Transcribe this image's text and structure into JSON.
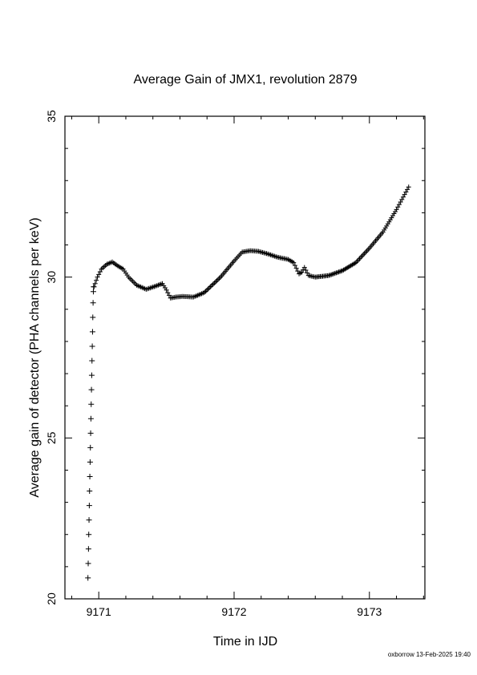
{
  "chart_data": {
    "type": "scatter",
    "marker": "plus",
    "title": "Average Gain of JMX1, revolution 2879",
    "xlabel": "Time in IJD",
    "ylabel": "Average gain of detector (PHA channels per keV)",
    "xlim": [
      9170.75,
      9173.41
    ],
    "ylim": [
      20,
      35
    ],
    "xticks": [
      9171,
      9172,
      9173
    ],
    "yticks": [
      20,
      25,
      30,
      35
    ],
    "grid": false,
    "footer": "oxborrow 13-Feb-2025 19:40",
    "series": [
      {
        "sparse_x": [
          9170.92,
          9170.922,
          9170.924,
          9170.926,
          9170.928,
          9170.93,
          9170.932,
          9170.934,
          9170.936,
          9170.938,
          9170.94,
          9170.942,
          9170.944,
          9170.946,
          9170.948,
          9170.95,
          9170.952,
          9170.954,
          9170.956,
          9170.958,
          9170.96,
          9170.962
        ],
        "sparse_y": [
          20.65,
          21.1,
          21.55,
          22.0,
          22.45,
          22.9,
          23.35,
          23.8,
          24.25,
          24.7,
          25.15,
          25.6,
          26.05,
          26.5,
          26.95,
          27.4,
          27.85,
          28.3,
          28.75,
          29.2,
          29.55,
          29.7
        ],
        "dense_x": [
          9170.965,
          9170.99,
          9171.02,
          9171.06,
          9171.1,
          9171.14,
          9171.18,
          9171.22,
          9171.28,
          9171.35,
          9171.42,
          9171.47,
          9171.5,
          9171.53,
          9171.57,
          9171.62,
          9171.7,
          9171.78,
          9171.9,
          9172.0,
          9172.06,
          9172.12,
          9172.18,
          9172.25,
          9172.32,
          9172.4,
          9172.44,
          9172.48,
          9172.5,
          9172.52,
          9172.55,
          9172.6,
          9172.7,
          9172.8,
          9172.9,
          9173.0,
          9173.1,
          9173.2,
          9173.29
        ],
        "dense_y": [
          29.7,
          30.0,
          30.25,
          30.4,
          30.47,
          30.35,
          30.25,
          30.0,
          29.75,
          29.62,
          29.72,
          29.8,
          29.6,
          29.35,
          29.38,
          29.4,
          29.38,
          29.52,
          30.0,
          30.5,
          30.78,
          30.82,
          30.8,
          30.72,
          30.62,
          30.55,
          30.45,
          30.1,
          30.15,
          30.3,
          30.05,
          30.0,
          30.05,
          30.2,
          30.45,
          30.9,
          31.4,
          32.1,
          32.8
        ]
      }
    ]
  }
}
